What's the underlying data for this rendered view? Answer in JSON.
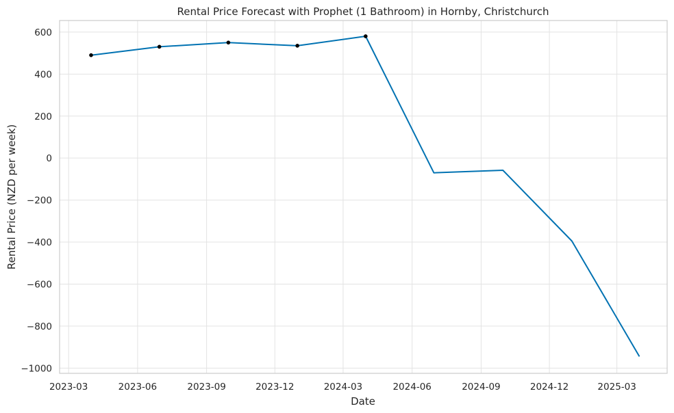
{
  "chart_data": {
    "type": "line",
    "title": "Rental Price Forecast with Prophet (1 Bathroom) in Hornby, Christchurch",
    "xlabel": "Date",
    "ylabel": "Rental Price (NZD per week)",
    "xlim": [
      "2023-02-17",
      "2025-05-07"
    ],
    "ylim": [
      -1025,
      655
    ],
    "x_ticks": [
      "2023-03",
      "2023-06",
      "2023-09",
      "2023-12",
      "2024-03",
      "2024-06",
      "2024-09",
      "2024-12",
      "2025-03"
    ],
    "y_ticks": [
      600,
      400,
      200,
      0,
      -200,
      -400,
      -600,
      -800,
      -1000
    ],
    "y_tick_labels": [
      "600",
      "400",
      "200",
      "0",
      "−200",
      "−400",
      "−600",
      "−800",
      "−1000"
    ],
    "grid": true,
    "line_color": "#0072b2",
    "point_color": "#000000",
    "series": [
      {
        "type": "observed",
        "x": [
          "2023-03-31",
          "2023-06-30",
          "2023-09-30",
          "2023-12-31",
          "2024-03-31"
        ],
        "y": [
          490,
          530,
          550,
          535,
          580
        ]
      },
      {
        "type": "forecast",
        "x": [
          "2023-03-31",
          "2023-06-30",
          "2023-09-30",
          "2023-12-31",
          "2024-03-31",
          "2024-06-30",
          "2024-09-30",
          "2024-12-31",
          "2025-03-31"
        ],
        "y": [
          490,
          530,
          550,
          535,
          580,
          -70,
          -58,
          -395,
          -945
        ]
      }
    ]
  }
}
